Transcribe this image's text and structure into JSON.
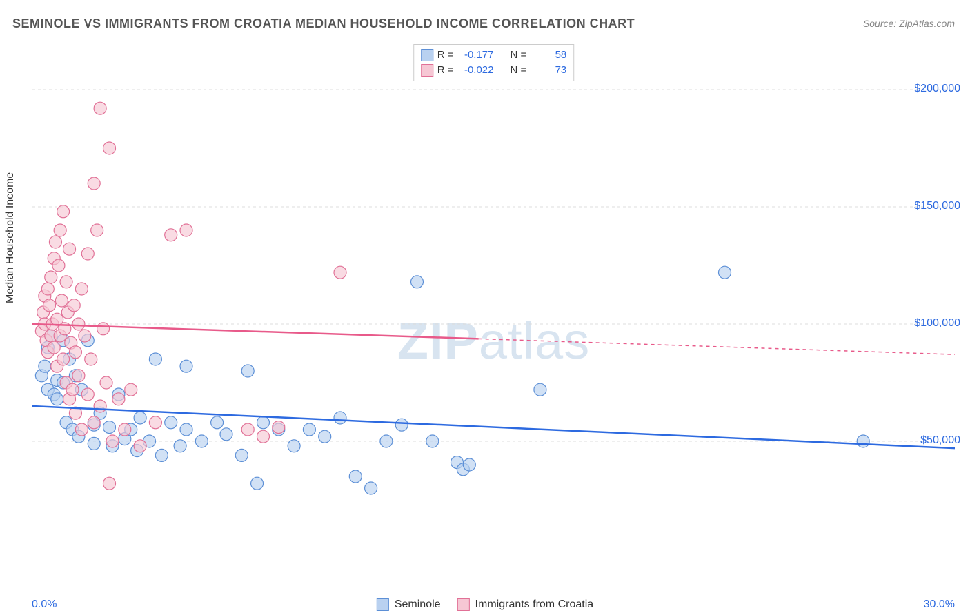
{
  "title": "SEMINOLE VS IMMIGRANTS FROM CROATIA MEDIAN HOUSEHOLD INCOME CORRELATION CHART",
  "source": "Source: ZipAtlas.com",
  "ylabel": "Median Household Income",
  "watermark_a": "ZIP",
  "watermark_b": "atlas",
  "chart": {
    "type": "scatter",
    "xlim": [
      0,
      30
    ],
    "ylim": [
      0,
      220000
    ],
    "x_ticks": [
      3,
      6,
      9,
      12,
      15,
      18,
      21,
      24,
      27,
      30
    ],
    "x_min_label": "0.0%",
    "x_max_label": "30.0%",
    "y_ticks": [
      50000,
      100000,
      150000,
      200000
    ],
    "y_tick_labels": [
      "$50,000",
      "$100,000",
      "$150,000",
      "$200,000"
    ],
    "grid_color": "#dddddd",
    "background_color": "#ffffff",
    "marker_radius": 9,
    "marker_stroke_width": 1.2,
    "series": [
      {
        "name": "Seminole",
        "fill": "#b9d1f0",
        "stroke": "#5c8fd6",
        "line_color": "#2d6ae0",
        "line_width": 2.5,
        "R": "-0.177",
        "N": "58",
        "trend": {
          "x1": 0,
          "y1": 65000,
          "x2": 30,
          "y2": 47000,
          "solid_until_x": 30
        },
        "points": [
          [
            0.3,
            78000
          ],
          [
            0.4,
            82000
          ],
          [
            0.5,
            72000
          ],
          [
            0.5,
            90000
          ],
          [
            0.6,
            95000
          ],
          [
            0.7,
            70000
          ],
          [
            0.8,
            76000
          ],
          [
            0.8,
            68000
          ],
          [
            1.0,
            75000
          ],
          [
            1.0,
            93000
          ],
          [
            1.1,
            58000
          ],
          [
            1.2,
            85000
          ],
          [
            1.3,
            55000
          ],
          [
            1.4,
            78000
          ],
          [
            1.5,
            52000
          ],
          [
            1.6,
            72000
          ],
          [
            1.8,
            93000
          ],
          [
            2.0,
            57000
          ],
          [
            2.0,
            49000
          ],
          [
            2.2,
            62000
          ],
          [
            2.5,
            56000
          ],
          [
            2.6,
            48000
          ],
          [
            2.8,
            70000
          ],
          [
            3.0,
            51000
          ],
          [
            3.2,
            55000
          ],
          [
            3.4,
            46000
          ],
          [
            3.5,
            60000
          ],
          [
            3.8,
            50000
          ],
          [
            4.0,
            85000
          ],
          [
            4.2,
            44000
          ],
          [
            4.5,
            58000
          ],
          [
            4.8,
            48000
          ],
          [
            5.0,
            82000
          ],
          [
            5.0,
            55000
          ],
          [
            5.5,
            50000
          ],
          [
            6.0,
            58000
          ],
          [
            6.3,
            53000
          ],
          [
            6.8,
            44000
          ],
          [
            7.0,
            80000
          ],
          [
            7.3,
            32000
          ],
          [
            7.5,
            58000
          ],
          [
            8.0,
            55000
          ],
          [
            8.5,
            48000
          ],
          [
            9.0,
            55000
          ],
          [
            9.5,
            52000
          ],
          [
            10.0,
            60000
          ],
          [
            10.5,
            35000
          ],
          [
            11.0,
            30000
          ],
          [
            11.5,
            50000
          ],
          [
            12.0,
            57000
          ],
          [
            12.5,
            118000
          ],
          [
            13.0,
            50000
          ],
          [
            13.8,
            41000
          ],
          [
            14.0,
            38000
          ],
          [
            14.2,
            40000
          ],
          [
            16.5,
            72000
          ],
          [
            22.5,
            122000
          ],
          [
            27.0,
            50000
          ]
        ]
      },
      {
        "name": "Immigrants from Croatia",
        "fill": "#f6c7d4",
        "stroke": "#e17096",
        "line_color": "#e85a8a",
        "line_width": 2.5,
        "R": "-0.022",
        "N": "73",
        "trend": {
          "x1": 0,
          "y1": 100000,
          "x2": 30,
          "y2": 87000,
          "solid_until_x": 14.5
        },
        "points": [
          [
            0.3,
            97000
          ],
          [
            0.35,
            105000
          ],
          [
            0.4,
            100000
          ],
          [
            0.4,
            112000
          ],
          [
            0.45,
            93000
          ],
          [
            0.5,
            115000
          ],
          [
            0.5,
            88000
          ],
          [
            0.55,
            108000
          ],
          [
            0.6,
            120000
          ],
          [
            0.6,
            95000
          ],
          [
            0.65,
            100000
          ],
          [
            0.7,
            128000
          ],
          [
            0.7,
            90000
          ],
          [
            0.75,
            135000
          ],
          [
            0.8,
            102000
          ],
          [
            0.8,
            82000
          ],
          [
            0.85,
            125000
          ],
          [
            0.9,
            140000
          ],
          [
            0.9,
            95000
          ],
          [
            0.95,
            110000
          ],
          [
            1.0,
            148000
          ],
          [
            1.0,
            85000
          ],
          [
            1.05,
            98000
          ],
          [
            1.1,
            118000
          ],
          [
            1.1,
            75000
          ],
          [
            1.15,
            105000
          ],
          [
            1.2,
            132000
          ],
          [
            1.2,
            68000
          ],
          [
            1.25,
            92000
          ],
          [
            1.3,
            72000
          ],
          [
            1.35,
            108000
          ],
          [
            1.4,
            88000
          ],
          [
            1.4,
            62000
          ],
          [
            1.5,
            100000
          ],
          [
            1.5,
            78000
          ],
          [
            1.6,
            115000
          ],
          [
            1.6,
            55000
          ],
          [
            1.7,
            95000
          ],
          [
            1.8,
            130000
          ],
          [
            1.8,
            70000
          ],
          [
            1.9,
            85000
          ],
          [
            2.0,
            160000
          ],
          [
            2.0,
            58000
          ],
          [
            2.1,
            140000
          ],
          [
            2.2,
            192000
          ],
          [
            2.2,
            65000
          ],
          [
            2.3,
            98000
          ],
          [
            2.4,
            75000
          ],
          [
            2.5,
            175000
          ],
          [
            2.5,
            32000
          ],
          [
            2.6,
            50000
          ],
          [
            2.8,
            68000
          ],
          [
            3.0,
            55000
          ],
          [
            3.2,
            72000
          ],
          [
            3.5,
            48000
          ],
          [
            4.0,
            58000
          ],
          [
            4.5,
            138000
          ],
          [
            5.0,
            140000
          ],
          [
            7.0,
            55000
          ],
          [
            7.5,
            52000
          ],
          [
            8.0,
            56000
          ],
          [
            10.0,
            122000
          ]
        ]
      }
    ]
  },
  "legend_top": {
    "R_label": "R =",
    "N_label": "N ="
  },
  "legend_bottom_labels": [
    "Seminole",
    "Immigrants from Croatia"
  ]
}
